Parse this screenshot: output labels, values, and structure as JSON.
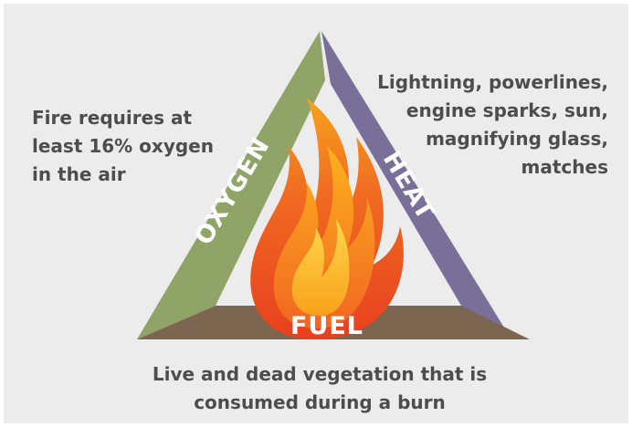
{
  "triangle": {
    "oxygen": {
      "label": "OXYGEN",
      "description": [
        "Fire requires at",
        "least 16% oxygen",
        "in the air"
      ]
    },
    "heat": {
      "label": "HEAT",
      "description": [
        "Lightning, powerlines,",
        "engine sparks, sun,",
        "magnifying glass,",
        "matches"
      ]
    },
    "fuel": {
      "label": "FUEL",
      "description": [
        "Live and dead vegetation that is",
        "consumed during a burn"
      ]
    }
  }
}
